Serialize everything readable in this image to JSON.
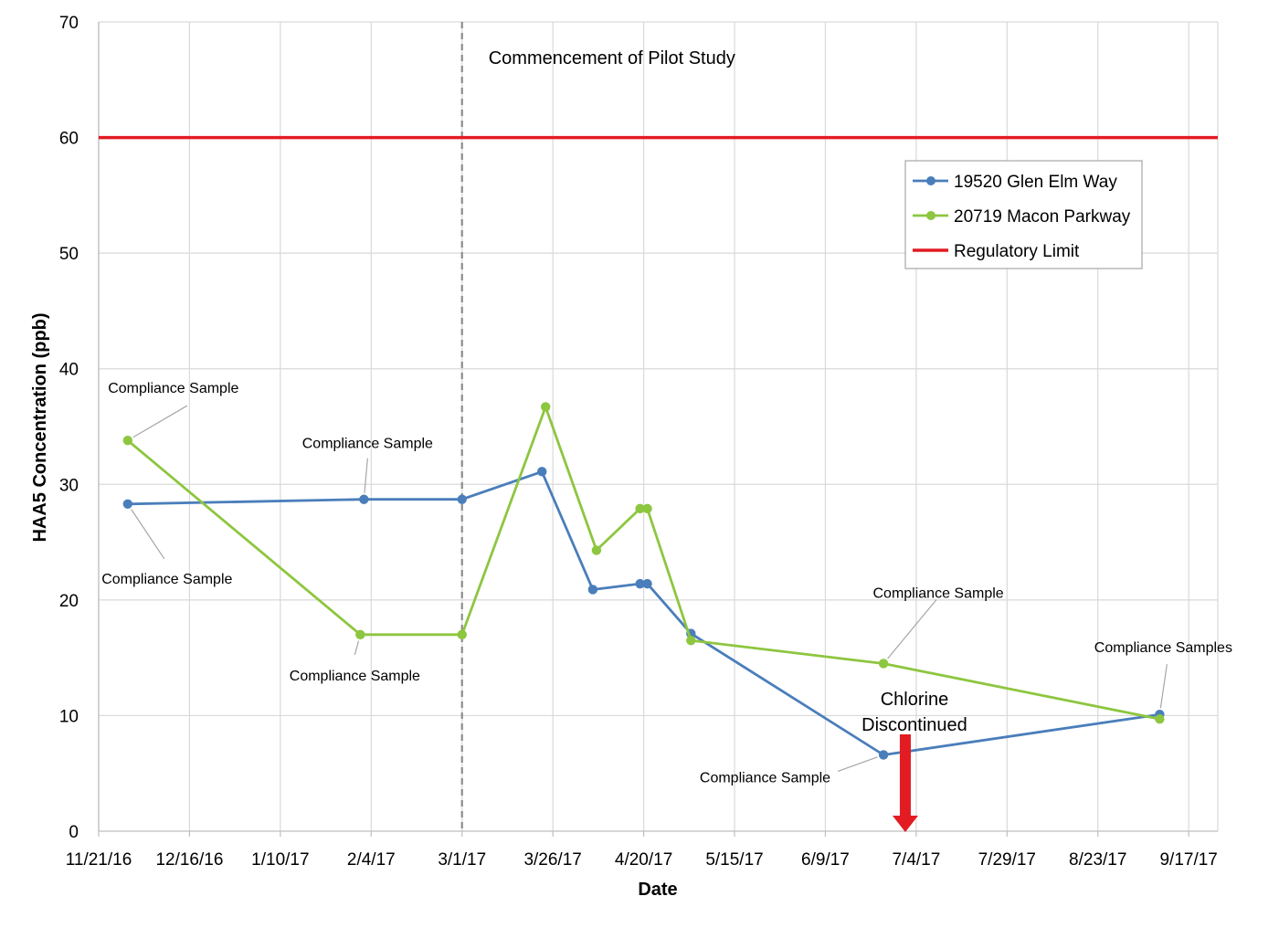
{
  "chart_data": {
    "type": "line",
    "xlabel": "Date",
    "ylabel": "HAA5 Concentration (ppb)",
    "ylim": [
      0,
      70
    ],
    "yticks": [
      0,
      10,
      20,
      30,
      40,
      50,
      60,
      70
    ],
    "xlim": [
      "2016-11-21",
      "2017-09-25"
    ],
    "xticks": [
      {
        "date": "2016-11-21",
        "label": "11/21/16"
      },
      {
        "date": "2016-12-16",
        "label": "12/16/16"
      },
      {
        "date": "2017-01-10",
        "label": "1/10/17"
      },
      {
        "date": "2017-02-04",
        "label": "2/4/17"
      },
      {
        "date": "2017-03-01",
        "label": "3/1/17"
      },
      {
        "date": "2017-03-26",
        "label": "3/26/17"
      },
      {
        "date": "2017-04-20",
        "label": "4/20/17"
      },
      {
        "date": "2017-05-15",
        "label": "5/15/17"
      },
      {
        "date": "2017-06-09",
        "label": "6/9/17"
      },
      {
        "date": "2017-07-04",
        "label": "7/4/17"
      },
      {
        "date": "2017-07-29",
        "label": "7/29/17"
      },
      {
        "date": "2017-08-23",
        "label": "8/23/17"
      },
      {
        "date": "2017-09-17",
        "label": "9/17/17"
      }
    ],
    "grid": true,
    "legend_position": "top-right",
    "series": [
      {
        "name": "19520 Glen Elm Way",
        "color": "#4a7ebb",
        "points": [
          {
            "x": "2016-11-29",
            "y": 28.3
          },
          {
            "x": "2017-02-02",
            "y": 28.7
          },
          {
            "x": "2017-03-01",
            "y": 28.7
          },
          {
            "x": "2017-03-23",
            "y": 31.1
          },
          {
            "x": "2017-04-06",
            "y": 20.9
          },
          {
            "x": "2017-04-19",
            "y": 21.4
          },
          {
            "x": "2017-04-21",
            "y": 21.4
          },
          {
            "x": "2017-05-03",
            "y": 17.1
          },
          {
            "x": "2017-06-25",
            "y": 6.6
          },
          {
            "x": "2017-09-09",
            "y": 10.1
          }
        ]
      },
      {
        "name": "20719 Macon Parkway",
        "color": "#8dc63f",
        "points": [
          {
            "x": "2016-11-29",
            "y": 33.8
          },
          {
            "x": "2017-02-01",
            "y": 17.0
          },
          {
            "x": "2017-03-01",
            "y": 17.0
          },
          {
            "x": "2017-03-24",
            "y": 36.7
          },
          {
            "x": "2017-04-07",
            "y": 24.3
          },
          {
            "x": "2017-04-19",
            "y": 27.9
          },
          {
            "x": "2017-04-21",
            "y": 27.9
          },
          {
            "x": "2017-05-03",
            "y": 16.5
          },
          {
            "x": "2017-06-25",
            "y": 14.5
          },
          {
            "x": "2017-09-09",
            "y": 9.7
          }
        ]
      },
      {
        "name": "Regulatory Limit",
        "color": "#e31b23",
        "constant_y": 60
      }
    ],
    "vertical_markers": [
      {
        "x": "2017-03-01",
        "label": "Commencement of Pilot Study",
        "style": "dashed",
        "color": "#8c8c8c"
      }
    ],
    "annotations": [
      {
        "text": "Compliance Sample",
        "series": 1,
        "point": 0,
        "dir": "above"
      },
      {
        "text": "Compliance Sample",
        "series": 0,
        "point": 0,
        "dir": "below"
      },
      {
        "text": "Compliance Sample",
        "series": 0,
        "point": 1,
        "dir": "above"
      },
      {
        "text": "Compliance Sample",
        "series": 1,
        "point": 1,
        "dir": "below"
      },
      {
        "text": "Compliance Sample",
        "series": 1,
        "point": 8,
        "dir": "above-right"
      },
      {
        "text": "Compliance Sample",
        "series": 0,
        "point": 8,
        "dir": "below-left"
      },
      {
        "text": "Compliance Samples",
        "series": 0,
        "point": 9,
        "dir": "above"
      }
    ],
    "event": {
      "x": "2017-07-01",
      "lines": [
        "Chlorine",
        "Discontinued"
      ],
      "arrow_color": "#e31b23"
    }
  }
}
